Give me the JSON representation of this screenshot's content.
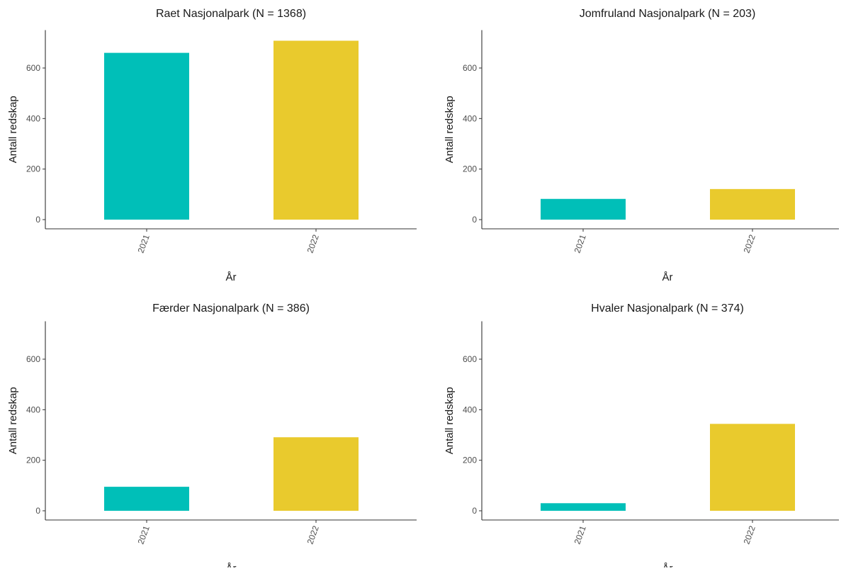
{
  "colors": {
    "2021": "#00BFB8",
    "2022": "#E9CA2D"
  },
  "chart_data": [
    {
      "type": "bar",
      "title": "Raet Nasjonalpark (N = 1368)",
      "xlabel": "År",
      "ylabel": "Antall redskap",
      "categories": [
        "2021",
        "2022"
      ],
      "values": [
        660,
        708
      ],
      "ylim": [
        0,
        750
      ],
      "yticks": [
        "0",
        "200",
        "400",
        "600"
      ],
      "grid": false
    },
    {
      "type": "bar",
      "title": "Jomfruland Nasjonalpark (N = 203)",
      "xlabel": "År",
      "ylabel": "Antall redskap",
      "categories": [
        "2021",
        "2022"
      ],
      "values": [
        82,
        121
      ],
      "ylim": [
        0,
        750
      ],
      "yticks": [
        "0",
        "200",
        "400",
        "600"
      ],
      "grid": false
    },
    {
      "type": "bar",
      "title": "Færder Nasjonalpark (N = 386)",
      "xlabel": "År",
      "ylabel": "Antall redskap",
      "categories": [
        "2021",
        "2022"
      ],
      "values": [
        95,
        291
      ],
      "ylim": [
        0,
        750
      ],
      "yticks": [
        "0",
        "200",
        "400",
        "600"
      ],
      "grid": false
    },
    {
      "type": "bar",
      "title": "Hvaler Nasjonalpark (N = 374)",
      "xlabel": "År",
      "ylabel": "Antall redskap",
      "categories": [
        "2021",
        "2022"
      ],
      "values": [
        30,
        344
      ],
      "ylim": [
        0,
        750
      ],
      "yticks": [
        "0",
        "200",
        "400",
        "600"
      ],
      "grid": false
    }
  ]
}
